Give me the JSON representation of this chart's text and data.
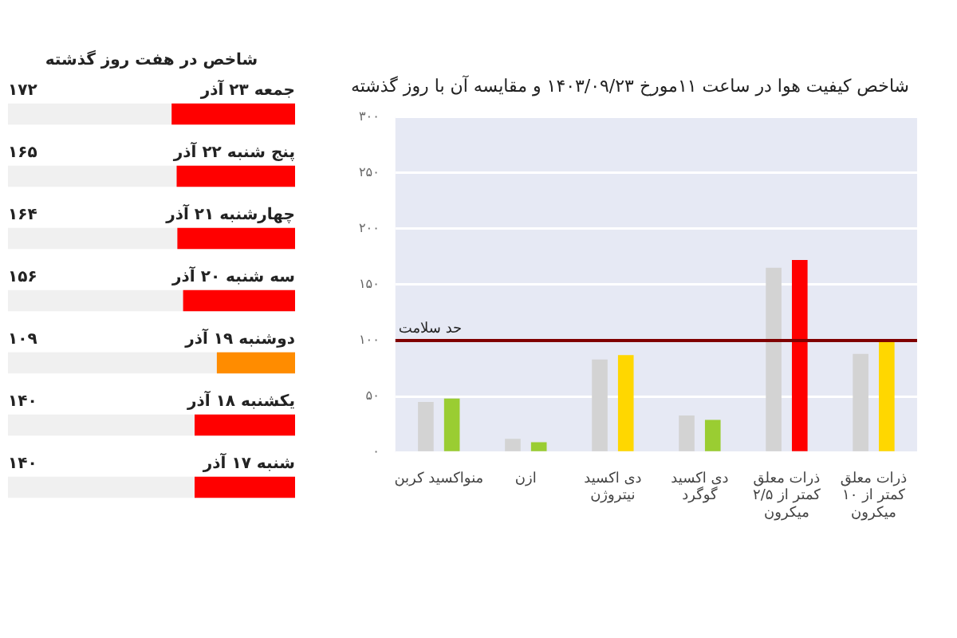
{
  "chart_data": [
    {
      "type": "bar",
      "title": "شاخص در هفت روز گذشته",
      "orientation": "horizontal",
      "categories": [
        "جمعه ۲۳ آذر",
        "پنج شنبه ۲۲ آذر",
        "چهارشنبه ۲۱ آذر",
        "سه شنبه ۲۰ آذر",
        "دوشنبه ۱۹ آذر",
        "یکشنبه ۱۸ آذر",
        "شنبه ۱۷ آذر"
      ],
      "values": [
        172,
        165,
        164,
        156,
        109,
        140,
        140
      ],
      "colors": [
        "#ff0000",
        "#ff0000",
        "#ff0000",
        "#ff0000",
        "#ff8c00",
        "#ff0000",
        "#ff0000"
      ],
      "value_labels": [
        "۱۷۲",
        "۱۶۵",
        "۱۶۴",
        "۱۵۶",
        "۱۰۹",
        "۱۴۰",
        "۱۴۰"
      ],
      "xlim": [
        400,
        0
      ]
    },
    {
      "type": "bar",
      "title": "شاخص کیفیت هوا در ساعت ۱۱مورخ ۱۴۰۳/۰۹/۲۳ و مقایسه آن با روز گذشته",
      "categories": [
        "منواکسید کربن",
        "ازن",
        "دی اکسید نیتروژن",
        "دی اکسید گوگرد",
        "ذرات معلق کمتر از ۲/۵ میکرون",
        "ذرات معلق کمتر از ۱۰ میکرون"
      ],
      "series": [
        {
          "color": "#d3d3d3",
          "values": [
            45,
            12,
            83,
            33,
            165,
            88
          ]
        },
        {
          "colors": [
            "#9acd32",
            "#9acd32",
            "#ffd700",
            "#9acd32",
            "#ff0000",
            "#ffd700"
          ],
          "values": [
            48,
            9,
            87,
            29,
            172,
            99
          ]
        }
      ],
      "ylim": [
        0,
        300
      ],
      "yticks": [
        {
          "value": 0,
          "label": "۰"
        },
        {
          "value": 50,
          "label": "۵۰"
        },
        {
          "value": 100,
          "label": "۱۰۰"
        },
        {
          "value": 150,
          "label": "۱۵۰"
        },
        {
          "value": 200,
          "label": "۲۰۰"
        },
        {
          "value": 250,
          "label": "۲۵۰"
        },
        {
          "value": 300,
          "label": "۳۰۰"
        }
      ],
      "grid": "y",
      "ref_lines": [
        {
          "axis": "y",
          "value": 100,
          "label": "حد سلامت",
          "color": "#800000"
        }
      ]
    }
  ]
}
